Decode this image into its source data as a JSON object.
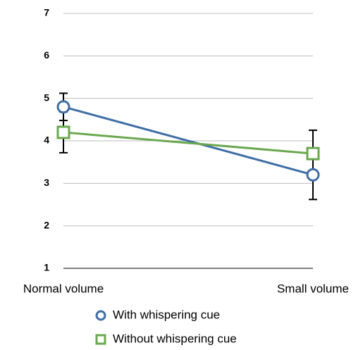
{
  "chart_data": {
    "type": "line",
    "categories": [
      "Normal volume",
      "Small volume"
    ],
    "series": [
      {
        "name": "With whispering cue",
        "color": "#3f6ea6",
        "marker": "circle",
        "values": [
          4.8,
          3.2
        ],
        "errors": [
          0.32,
          0.58
        ]
      },
      {
        "name": "Without whispering cue",
        "color": "#6aa84f",
        "marker": "square",
        "values": [
          4.2,
          3.7
        ],
        "errors": [
          0.48,
          0.55
        ]
      }
    ],
    "ylim": [
      1,
      7
    ],
    "yticks": [
      1,
      2,
      3,
      4,
      5,
      6,
      7
    ],
    "grid": true,
    "legend": "bottom"
  }
}
